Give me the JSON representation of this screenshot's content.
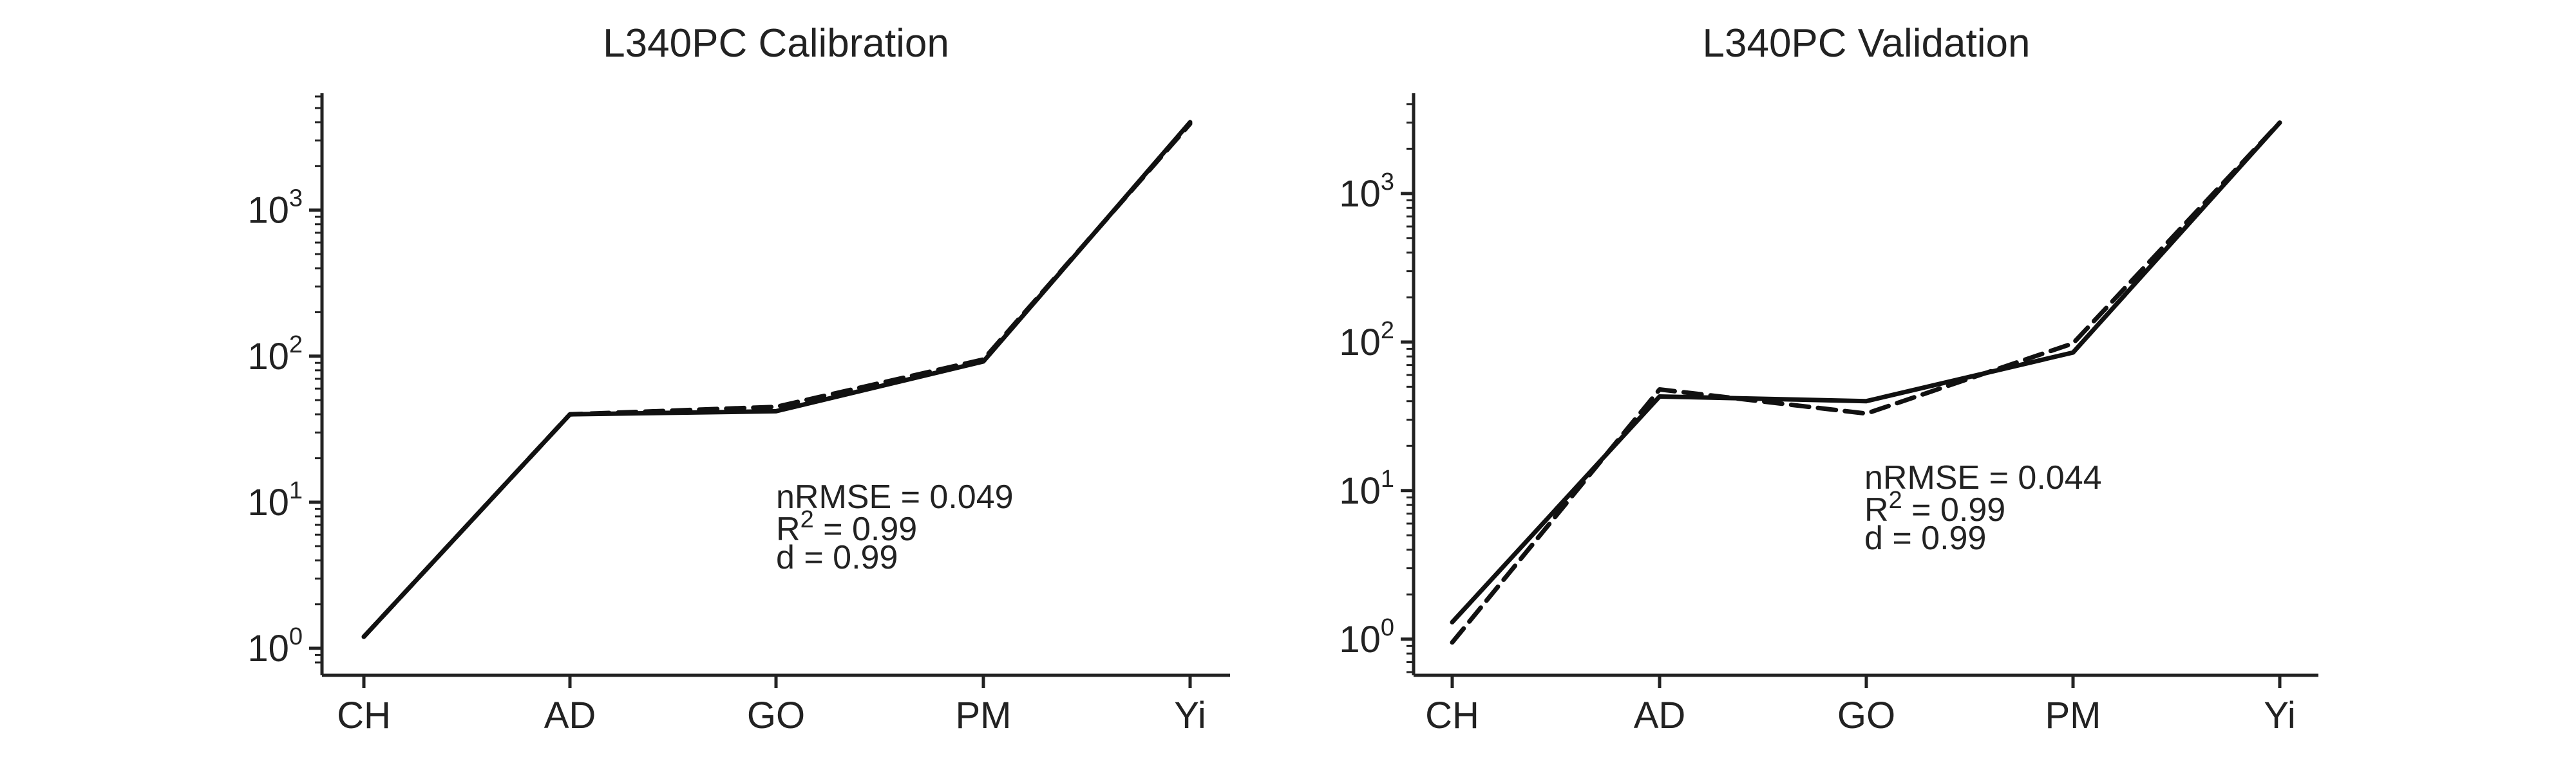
{
  "chart_data": [
    {
      "type": "line",
      "title": "L340PC Calibration",
      "xlabel": "",
      "ylabel": "",
      "yscale": "log",
      "ylim": [
        0.8,
        6000
      ],
      "categories": [
        "CH",
        "AD",
        "GO",
        "PM",
        "Yi"
      ],
      "y_tick_labels": [
        {
          "base": "10",
          "exp": "0"
        },
        {
          "base": "10",
          "exp": "1"
        },
        {
          "base": "10",
          "exp": "2"
        },
        {
          "base": "10",
          "exp": "3"
        }
      ],
      "series": [
        {
          "style": "solid",
          "values": [
            1.2,
            40,
            42,
            92,
            4000
          ]
        },
        {
          "style": "dashed",
          "values": [
            1.2,
            40,
            45,
            95,
            3900
          ]
        }
      ],
      "stats": {
        "line1": "nRMSE = 0.049",
        "line2_prefix": "R",
        "line2_sup": "2",
        "line2_suffix": " = 0.99",
        "line3": "d = 0.99"
      },
      "grid": false,
      "legend": "none"
    },
    {
      "type": "line",
      "title": "L340PC Validation",
      "xlabel": "",
      "ylabel": "",
      "yscale": "log",
      "ylim": [
        0.6,
        4500
      ],
      "categories": [
        "CH",
        "AD",
        "GO",
        "PM",
        "Yi"
      ],
      "y_tick_labels": [
        {
          "base": "10",
          "exp": "0"
        },
        {
          "base": "10",
          "exp": "1"
        },
        {
          "base": "10",
          "exp": "2"
        },
        {
          "base": "10",
          "exp": "3"
        }
      ],
      "series": [
        {
          "style": "solid",
          "values": [
            1.3,
            43,
            40,
            85,
            3000
          ]
        },
        {
          "style": "dashed",
          "values": [
            0.95,
            48,
            33,
            98,
            3000
          ]
        }
      ],
      "stats": {
        "line1": "nRMSE = 0.044",
        "line2_prefix": "R",
        "line2_sup": "2",
        "line2_suffix": " = 0.99",
        "line3": "d = 0.99"
      },
      "grid": false,
      "legend": "none"
    }
  ]
}
